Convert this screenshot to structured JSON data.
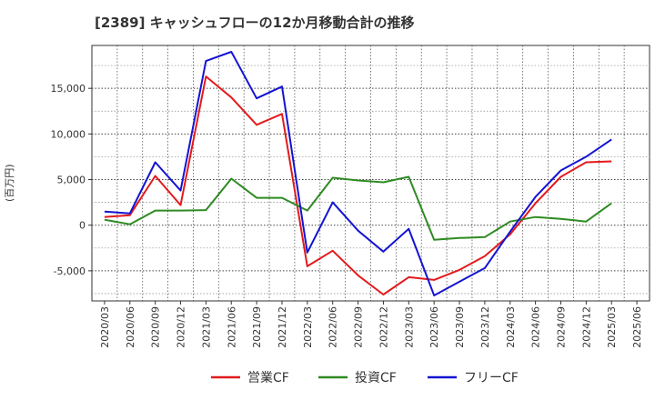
{
  "chart_data": {
    "type": "line",
    "title": "[2389]  キャッシュフローの12か月移動合計の推移",
    "ylabel": "(百万円)",
    "xlabel": "",
    "x": [
      "2020/03",
      "2020/06",
      "2020/09",
      "2020/12",
      "2021/03",
      "2021/06",
      "2021/09",
      "2021/12",
      "2022/03",
      "2022/06",
      "2022/09",
      "2022/12",
      "2023/03",
      "2023/06",
      "2023/09",
      "2023/12",
      "2024/03",
      "2024/06",
      "2024/09",
      "2024/12",
      "2025/03",
      "2025/06"
    ],
    "ylim": [
      -8300,
      19700
    ],
    "yticks": [
      -5000,
      0,
      5000,
      10000,
      15000
    ],
    "ytick_labels": [
      "-5,000",
      "0",
      "5,000",
      "10,000",
      "15,000"
    ],
    "grid": true,
    "legend_position": "bottom",
    "series": [
      {
        "name": "営業CF",
        "color": "#e31a1c",
        "values": [
          900,
          1100,
          5400,
          2200,
          16300,
          14000,
          11000,
          12200,
          -4500,
          -2800,
          -5500,
          -7600,
          -5700,
          -6000,
          -4900,
          -3400,
          -1000,
          2400,
          5300,
          6900,
          7000,
          null
        ]
      },
      {
        "name": "投資CF",
        "color": "#2e8b22",
        "values": [
          600,
          100,
          1600,
          1600,
          1650,
          5100,
          3000,
          3000,
          1600,
          5200,
          4900,
          4700,
          5300,
          -1600,
          -1400,
          -1300,
          400,
          900,
          700,
          400,
          2400,
          null
        ]
      },
      {
        "name": "フリーCF",
        "color": "#1414d2",
        "values": [
          1500,
          1300,
          6900,
          3800,
          18000,
          19000,
          13900,
          15200,
          -3000,
          2500,
          -600,
          -2900,
          -400,
          -7700,
          -6200,
          -4700,
          -700,
          3100,
          6000,
          7500,
          9400,
          null
        ]
      }
    ]
  }
}
